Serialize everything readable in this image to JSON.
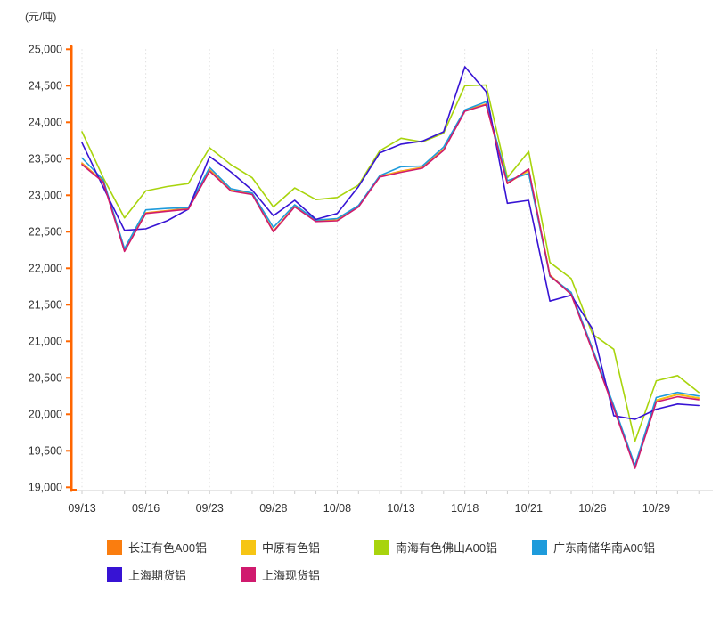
{
  "unit_label": "(元/吨)",
  "axis_colors": {
    "y_axis": "#FF6600",
    "x_axis": "#CCCCCC",
    "grid": "#DFDFDF",
    "text": "#333333"
  },
  "chart_data": {
    "type": "line",
    "title": "",
    "ylabel": "(元/吨)",
    "xlabel": "",
    "ylim": [
      19000,
      25000
    ],
    "ytick_step": 500,
    "grid": "vertical-dotted-only",
    "legend_position": "bottom",
    "yticks": [
      "25,000",
      "24,500",
      "24,000",
      "23,500",
      "23,000",
      "22,500",
      "22,000",
      "21,500",
      "21,000",
      "20,500",
      "20,000",
      "19,500",
      "19,000"
    ],
    "xticks": [
      "09/13",
      "09/16",
      "09/23",
      "09/28",
      "10/08",
      "10/13",
      "10/18",
      "10/21",
      "10/26",
      "10/29"
    ],
    "x": [
      "09/13",
      "09/14",
      "09/15",
      "09/16",
      "09/17",
      "09/22",
      "09/23",
      "09/24",
      "09/27",
      "09/28",
      "09/29",
      "09/30",
      "10/08",
      "10/11",
      "10/12",
      "10/13",
      "10/14",
      "10/15",
      "10/18",
      "10/19",
      "10/20",
      "10/21",
      "10/22",
      "10/25",
      "10/26",
      "10/27",
      "10/28",
      "10/29",
      "11/01",
      "11/02"
    ],
    "series": [
      {
        "name": "长江有色A00铝",
        "color": "#FA7D0F",
        "values": [
          23440,
          23190,
          22240,
          22760,
          22790,
          22820,
          23350,
          23070,
          23020,
          22510,
          22850,
          22650,
          22660,
          22850,
          23260,
          23330,
          23380,
          23630,
          24160,
          24250,
          23170,
          23350,
          21910,
          21650,
          20880,
          20100,
          19290,
          20190,
          20270,
          20220
        ]
      },
      {
        "name": "中原有色铝",
        "color": "#F6C514",
        "values": [
          23430,
          23185,
          22235,
          22755,
          22785,
          22815,
          23340,
          23065,
          23015,
          22505,
          22845,
          22645,
          22655,
          22845,
          23255,
          23325,
          23375,
          23625,
          24155,
          24245,
          23165,
          23335,
          21905,
          21645,
          20875,
          20090,
          19280,
          20195,
          20275,
          20225
        ]
      },
      {
        "name": "南海有色佛山A00铝",
        "color": "#A8D40D",
        "values": [
          23870,
          23240,
          22690,
          23060,
          23120,
          23160,
          23650,
          23420,
          23240,
          22840,
          23100,
          22940,
          22970,
          23140,
          23610,
          23780,
          23730,
          23850,
          24500,
          24510,
          23240,
          23600,
          22080,
          21860,
          21100,
          20890,
          19630,
          20460,
          20530,
          20300
        ]
      },
      {
        "name": "广东南储华南A00铝",
        "color": "#1E9BDB",
        "values": [
          23510,
          23210,
          22270,
          22800,
          22820,
          22830,
          23380,
          23090,
          23030,
          22560,
          22870,
          22660,
          22680,
          22860,
          23270,
          23390,
          23400,
          23660,
          24170,
          24280,
          23200,
          23300,
          21890,
          21670,
          20900,
          20120,
          19300,
          20230,
          20300,
          20250
        ]
      },
      {
        "name": "上海期货铝",
        "color": "#3713D4",
        "values": [
          23720,
          23110,
          22520,
          22540,
          22650,
          22810,
          23530,
          23320,
          23070,
          22720,
          22930,
          22670,
          22750,
          23120,
          23580,
          23700,
          23740,
          23870,
          24760,
          24420,
          22890,
          22930,
          21550,
          21630,
          21170,
          19980,
          19930,
          20070,
          20140,
          20120
        ]
      },
      {
        "name": "上海现货铝",
        "color": "#D01A6E",
        "values": [
          23420,
          23180,
          22230,
          22750,
          22780,
          22810,
          23330,
          23060,
          23010,
          22500,
          22840,
          22640,
          22650,
          22840,
          23250,
          23315,
          23370,
          23615,
          24150,
          24240,
          23160,
          23360,
          21900,
          21640,
          20870,
          20080,
          19260,
          20170,
          20240,
          20200
        ]
      }
    ]
  }
}
